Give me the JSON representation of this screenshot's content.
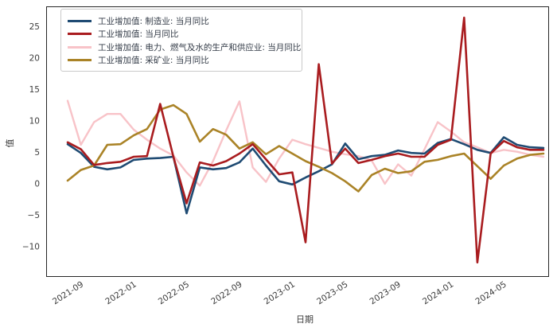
{
  "legend": {
    "items": [
      {
        "label": "工业增加值: 制造业: 当月同比",
        "color": "#1f4b73"
      },
      {
        "label": "工业增加值: 当月同比",
        "color": "#a91c1f"
      },
      {
        "label": "工业增加值: 电力、燃气及水的生产和供应业: 当月同比",
        "color": "#f8c3c8"
      },
      {
        "label": "工业增加值: 采矿业: 当月同比",
        "color": "#aa8327"
      }
    ]
  },
  "chart_data": {
    "type": "line",
    "title": "",
    "xlabel": "日期",
    "ylabel": "值",
    "grid": false,
    "legend_position": "upper left",
    "ylim": [
      -14.8,
      28.2
    ],
    "y_ticks": [
      -10,
      -5,
      0,
      5,
      10,
      15,
      20,
      25
    ],
    "x_ticks": [
      "2021-09",
      "2022-01",
      "2022-05",
      "2022-09",
      "2023-01",
      "2023-05",
      "2023-09",
      "2024-01",
      "2024-05"
    ],
    "x": [
      "2021-08",
      "2021-09",
      "2021-10",
      "2021-11",
      "2021-12",
      "2022-01",
      "2022-02",
      "2022-03",
      "2022-04",
      "2022-05",
      "2022-06",
      "2022-07",
      "2022-08",
      "2022-09",
      "2022-10",
      "2022-11",
      "2022-12",
      "2023-01",
      "2023-02",
      "2023-03",
      "2023-04",
      "2023-05",
      "2023-06",
      "2023-07",
      "2023-08",
      "2023-09",
      "2023-10",
      "2023-11",
      "2023-12",
      "2024-01",
      "2024-02",
      "2024-03",
      "2024-04",
      "2024-05",
      "2024-06",
      "2024-07",
      "2024-08"
    ],
    "series": [
      {
        "name": "工业增加值: 制造业: 当月同比",
        "color": "#1f4b73",
        "values": [
          6.3,
          4.9,
          2.7,
          2.3,
          2.6,
          3.8,
          4.0,
          4.1,
          4.3,
          -4.7,
          2.6,
          2.3,
          2.5,
          3.4,
          5.6,
          2.9,
          0.4,
          -0.1,
          1.0,
          2.0,
          3.1,
          6.4,
          3.9,
          4.4,
          4.6,
          5.3,
          4.9,
          4.8,
          6.5,
          7.1,
          6.3,
          5.4,
          4.9,
          7.4,
          6.2,
          5.8,
          5.7
        ]
      },
      {
        "name": "工业增加值: 当月同比",
        "color": "#a91c1f",
        "values": [
          6.6,
          5.5,
          3.0,
          3.3,
          3.5,
          4.3,
          4.4,
          12.7,
          4.3,
          -3.1,
          3.4,
          2.9,
          3.6,
          4.8,
          6.3,
          3.9,
          1.5,
          1.8,
          -9.3,
          19.0,
          3.2,
          5.6,
          3.3,
          3.8,
          4.4,
          4.8,
          4.3,
          4.3,
          6.2,
          7.0,
          26.4,
          -12.5,
          4.8,
          6.8,
          5.8,
          5.4,
          5.4
        ]
      },
      {
        "name": "工业增加值: 电力、燃气及水的生产和供应业: 当月同比",
        "color": "#f8c3c8",
        "values": [
          13.2,
          6.2,
          9.8,
          11.1,
          11.1,
          8.6,
          7.0,
          5.6,
          4.5,
          1.8,
          -0.3,
          3.6,
          8.5,
          13.1,
          2.6,
          0.3,
          4.0,
          7.0,
          6.3,
          5.7,
          5.1,
          4.7,
          4.4,
          3.7,
          0.0,
          3.1,
          1.3,
          5.5,
          9.8,
          8.3,
          6.6,
          5.8,
          4.9,
          5.4,
          5.1,
          4.6,
          4.3
        ]
      },
      {
        "name": "工业增加值: 采矿业: 当月同比",
        "color": "#aa8327",
        "values": [
          0.5,
          2.2,
          2.9,
          6.2,
          6.3,
          7.7,
          8.7,
          11.8,
          12.5,
          11.1,
          6.7,
          8.7,
          7.8,
          5.6,
          6.6,
          4.7,
          6.0,
          4.8,
          3.6,
          2.7,
          1.7,
          0.4,
          -1.2,
          1.4,
          2.4,
          1.7,
          2.0,
          3.5,
          3.8,
          4.4,
          4.8,
          2.8,
          0.8,
          2.9,
          4.0,
          4.6,
          4.8
        ]
      }
    ]
  }
}
